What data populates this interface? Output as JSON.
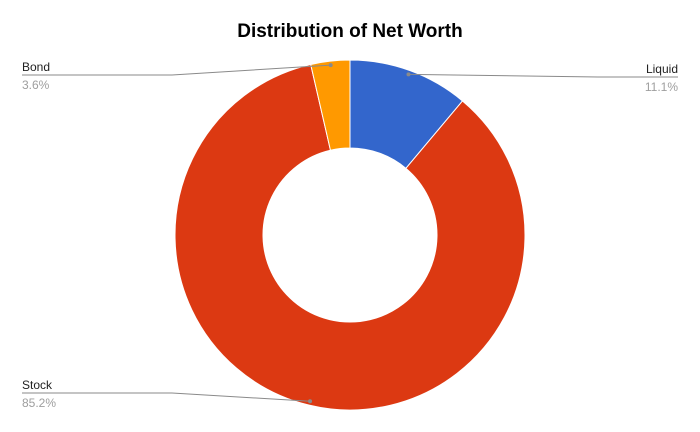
{
  "chart_data": {
    "type": "pie",
    "donut": true,
    "title": "Distribution of Net Worth",
    "legend": "none",
    "slices": [
      {
        "label": "Liquid",
        "value": 11.1,
        "display": "11.1%",
        "color": "#3366cc"
      },
      {
        "label": "Stock",
        "value": 85.2,
        "display": "85.2%",
        "color": "#dc3912"
      },
      {
        "label": "Bond",
        "value": 3.6,
        "display": "3.6%",
        "color": "#ff9900"
      }
    ]
  }
}
